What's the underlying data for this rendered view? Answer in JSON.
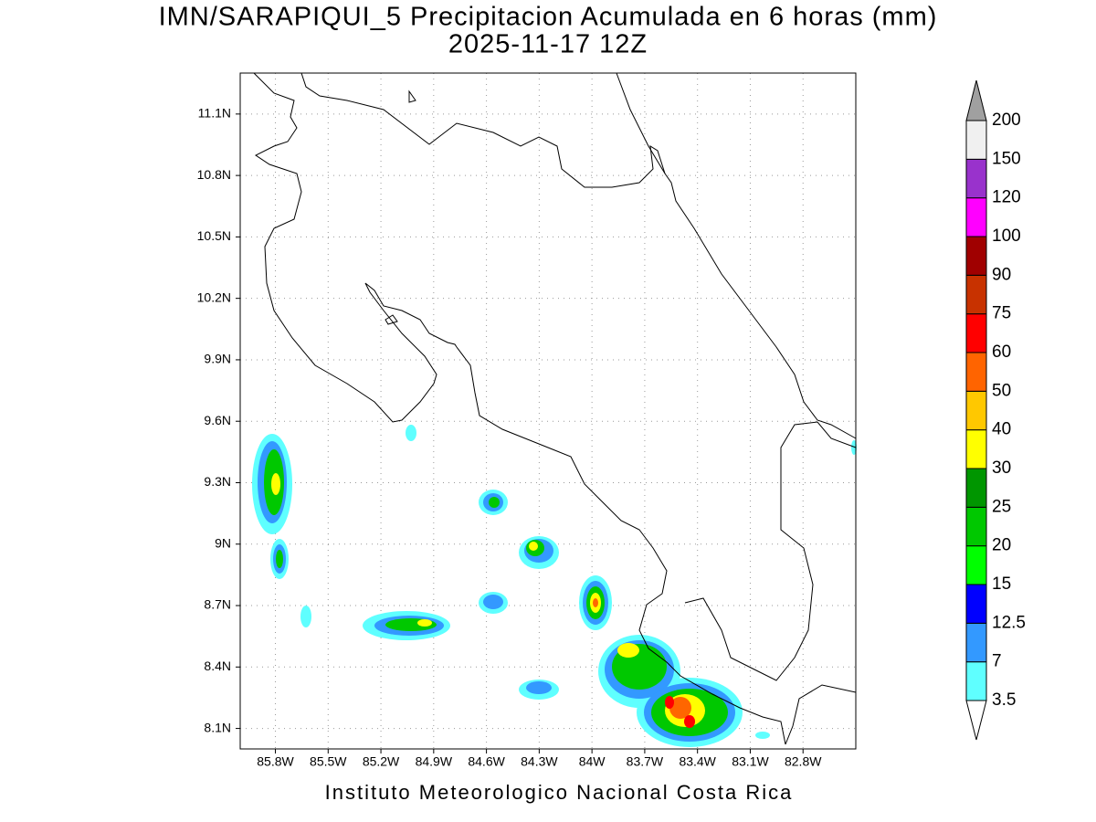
{
  "chart_data": {
    "type": "map",
    "title": "IMN/SARAPIQUI_5 Precipitacion Acumulada en 6 horas (mm)",
    "subtitle": "2025-11-17 12Z",
    "credit": "Instituto Meteorologico Nacional Costa Rica",
    "xlim": [
      -86.0,
      -82.5
    ],
    "ylim": [
      8.0,
      11.3
    ],
    "grid": true,
    "xticks": [
      {
        "value": -85.8,
        "label": "85.8W"
      },
      {
        "value": -85.5,
        "label": "85.5W"
      },
      {
        "value": -85.2,
        "label": "85.2W"
      },
      {
        "value": -84.9,
        "label": "84.9W"
      },
      {
        "value": -84.6,
        "label": "84.6W"
      },
      {
        "value": -84.3,
        "label": "84.3W"
      },
      {
        "value": -84.0,
        "label": "84W"
      },
      {
        "value": -83.7,
        "label": "83.7W"
      },
      {
        "value": -83.4,
        "label": "83.4W"
      },
      {
        "value": -83.1,
        "label": "83.1W"
      },
      {
        "value": -82.8,
        "label": "82.8W"
      }
    ],
    "yticks": [
      {
        "value": 8.1,
        "label": "8.1N"
      },
      {
        "value": 8.4,
        "label": "8.4N"
      },
      {
        "value": 8.7,
        "label": "8.7N"
      },
      {
        "value": 9.0,
        "label": "9N"
      },
      {
        "value": 9.3,
        "label": "9.3N"
      },
      {
        "value": 9.6,
        "label": "9.6N"
      },
      {
        "value": 9.9,
        "label": "9.9N"
      },
      {
        "value": 10.2,
        "label": "10.2N"
      },
      {
        "value": 10.5,
        "label": "10.5N"
      },
      {
        "value": 10.8,
        "label": "10.8N"
      },
      {
        "value": 11.1,
        "label": "11.1N"
      }
    ],
    "colorbar": {
      "levels": [
        3.5,
        7,
        12.5,
        15,
        20,
        25,
        30,
        40,
        50,
        60,
        75,
        90,
        100,
        120,
        150,
        200
      ],
      "colors": [
        "#ffffff",
        "#5fffff",
        "#3399ff",
        "#0000ff",
        "#00ff00",
        "#00c800",
        "#009600",
        "#ffff00",
        "#ffc800",
        "#ff6400",
        "#ff0000",
        "#c83200",
        "#a00000",
        "#ff00ff",
        "#9932cc",
        "#f0f0f0",
        "#a0a0a0"
      ]
    }
  }
}
